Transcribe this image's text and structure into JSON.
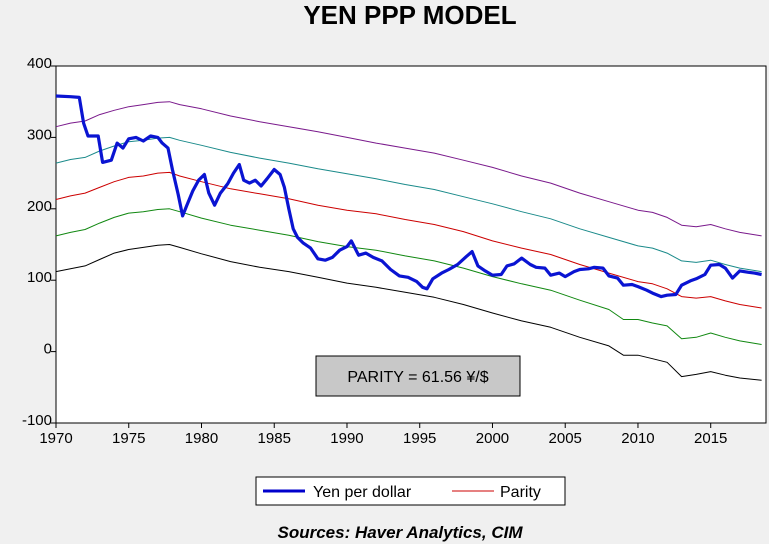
{
  "chart_data": {
    "type": "line",
    "title": "YEN PPP MODEL",
    "source": "Sources:  Haver Analytics, CIM",
    "annotation": "PARITY = 61.56 ¥/$",
    "xlim": [
      1970,
      2018.8
    ],
    "ylim": [
      -100,
      400
    ],
    "x_ticks": [
      1970,
      1975,
      1980,
      1985,
      1990,
      1995,
      2000,
      2005,
      2010,
      2015
    ],
    "y_ticks": [
      400,
      300,
      200,
      100,
      0,
      -100
    ],
    "grid": false,
    "legend_position": "bottom-center",
    "legend": [
      {
        "label": "Yen per dollar",
        "color": "#0000cc"
      },
      {
        "label": "Parity",
        "color": "#cc0000"
      }
    ],
    "series": [
      {
        "name": "Yen per dollar",
        "color": "#0a14d2",
        "points": [
          [
            1970.0,
            358
          ],
          [
            1971.0,
            357
          ],
          [
            1971.6,
            356
          ],
          [
            1971.9,
            320
          ],
          [
            1972.2,
            302
          ],
          [
            1972.9,
            302
          ],
          [
            1973.2,
            265
          ],
          [
            1973.8,
            268
          ],
          [
            1974.2,
            292
          ],
          [
            1974.6,
            285
          ],
          [
            1975.0,
            298
          ],
          [
            1975.5,
            300
          ],
          [
            1976.0,
            295
          ],
          [
            1976.5,
            302
          ],
          [
            1977.0,
            300
          ],
          [
            1977.3,
            292
          ],
          [
            1977.7,
            285
          ],
          [
            1978.0,
            255
          ],
          [
            1978.4,
            220
          ],
          [
            1978.7,
            190
          ],
          [
            1979.0,
            205
          ],
          [
            1979.4,
            225
          ],
          [
            1979.8,
            240
          ],
          [
            1980.2,
            248
          ],
          [
            1980.5,
            222
          ],
          [
            1980.9,
            205
          ],
          [
            1981.3,
            222
          ],
          [
            1981.8,
            235
          ],
          [
            1982.2,
            250
          ],
          [
            1982.6,
            262
          ],
          [
            1982.9,
            240
          ],
          [
            1983.3,
            236
          ],
          [
            1983.7,
            240
          ],
          [
            1984.1,
            232
          ],
          [
            1984.5,
            242
          ],
          [
            1985.0,
            255
          ],
          [
            1985.4,
            248
          ],
          [
            1985.7,
            230
          ],
          [
            1986.0,
            200
          ],
          [
            1986.3,
            172
          ],
          [
            1986.6,
            160
          ],
          [
            1987.0,
            152
          ],
          [
            1987.5,
            145
          ],
          [
            1988.0,
            130
          ],
          [
            1988.5,
            128
          ],
          [
            1989.0,
            132
          ],
          [
            1989.5,
            142
          ],
          [
            1990.0,
            147
          ],
          [
            1990.3,
            155
          ],
          [
            1990.8,
            135
          ],
          [
            1991.3,
            138
          ],
          [
            1991.8,
            132
          ],
          [
            1992.4,
            127
          ],
          [
            1993.0,
            115
          ],
          [
            1993.6,
            106
          ],
          [
            1994.2,
            104
          ],
          [
            1994.8,
            98
          ],
          [
            1995.2,
            90
          ],
          [
            1995.5,
            88
          ],
          [
            1995.9,
            102
          ],
          [
            1996.5,
            110
          ],
          [
            1997.0,
            115
          ],
          [
            1997.6,
            122
          ],
          [
            1998.2,
            133
          ],
          [
            1998.6,
            140
          ],
          [
            1999.0,
            120
          ],
          [
            1999.5,
            113
          ],
          [
            2000.0,
            107
          ],
          [
            2000.6,
            108
          ],
          [
            2001.0,
            120
          ],
          [
            2001.5,
            123
          ],
          [
            2002.0,
            131
          ],
          [
            2002.6,
            122
          ],
          [
            2003.0,
            118
          ],
          [
            2003.6,
            117
          ],
          [
            2004.0,
            107
          ],
          [
            2004.6,
            110
          ],
          [
            2005.0,
            105
          ],
          [
            2005.6,
            112
          ],
          [
            2006.0,
            115
          ],
          [
            2006.6,
            116
          ],
          [
            2007.0,
            118
          ],
          [
            2007.6,
            117
          ],
          [
            2008.0,
            106
          ],
          [
            2008.6,
            103
          ],
          [
            2009.0,
            93
          ],
          [
            2009.6,
            94
          ],
          [
            2010.0,
            91
          ],
          [
            2010.6,
            86
          ],
          [
            2011.0,
            82
          ],
          [
            2011.6,
            77
          ],
          [
            2012.0,
            79
          ],
          [
            2012.6,
            80
          ],
          [
            2013.0,
            93
          ],
          [
            2013.6,
            99
          ],
          [
            2014.0,
            102
          ],
          [
            2014.6,
            108
          ],
          [
            2015.0,
            121
          ],
          [
            2015.6,
            122
          ],
          [
            2016.0,
            117
          ],
          [
            2016.5,
            103
          ],
          [
            2017.0,
            113
          ],
          [
            2017.6,
            111
          ],
          [
            2018.0,
            110
          ],
          [
            2018.5,
            108
          ]
        ]
      },
      {
        "name": "Parity",
        "color": "#cc0000",
        "points": [
          [
            1970.0,
            213
          ],
          [
            1971.0,
            218
          ],
          [
            1972.0,
            222
          ],
          [
            1973.0,
            230
          ],
          [
            1974.0,
            238
          ],
          [
            1975.0,
            244
          ],
          [
            1976.0,
            246
          ],
          [
            1977.0,
            250
          ],
          [
            1977.8,
            251
          ],
          [
            1978.5,
            246
          ],
          [
            1980.0,
            238
          ],
          [
            1982.0,
            228
          ],
          [
            1984.0,
            221
          ],
          [
            1986.0,
            214
          ],
          [
            1988.0,
            205
          ],
          [
            1990.0,
            198
          ],
          [
            1992.0,
            193
          ],
          [
            1994.0,
            185
          ],
          [
            1996.0,
            178
          ],
          [
            1998.0,
            168
          ],
          [
            2000.0,
            155
          ],
          [
            2002.0,
            145
          ],
          [
            2004.0,
            136
          ],
          [
            2006.0,
            122
          ],
          [
            2008.0,
            110
          ],
          [
            2010.0,
            98
          ],
          [
            2011.0,
            95
          ],
          [
            2012.0,
            88
          ],
          [
            2013.0,
            77
          ],
          [
            2014.0,
            75
          ],
          [
            2015.0,
            77
          ],
          [
            2016.0,
            71
          ],
          [
            2017.0,
            66
          ],
          [
            2018.5,
            61
          ]
        ]
      },
      {
        "color": "#7a1a8c",
        "points": [
          [
            1970.0,
            315
          ],
          [
            1971.0,
            320
          ],
          [
            1972.0,
            323
          ],
          [
            1973.0,
            332
          ],
          [
            1974.0,
            338
          ],
          [
            1975.0,
            343
          ],
          [
            1976.0,
            346
          ],
          [
            1977.0,
            349
          ],
          [
            1977.8,
            350
          ],
          [
            1978.5,
            346
          ],
          [
            1980.0,
            340
          ],
          [
            1982.0,
            330
          ],
          [
            1984.0,
            322
          ],
          [
            1986.0,
            315
          ],
          [
            1988.0,
            308
          ],
          [
            1990.0,
            300
          ],
          [
            1992.0,
            292
          ],
          [
            1994.0,
            285
          ],
          [
            1996.0,
            278
          ],
          [
            1998.0,
            268
          ],
          [
            2000.0,
            258
          ],
          [
            2002.0,
            246
          ],
          [
            2004.0,
            236
          ],
          [
            2006.0,
            222
          ],
          [
            2008.0,
            210
          ],
          [
            2010.0,
            198
          ],
          [
            2011.0,
            195
          ],
          [
            2012.0,
            188
          ],
          [
            2013.0,
            177
          ],
          [
            2014.0,
            175
          ],
          [
            2015.0,
            178
          ],
          [
            2016.0,
            172
          ],
          [
            2017.0,
            167
          ],
          [
            2018.5,
            162
          ]
        ]
      },
      {
        "color": "#1a8a8a",
        "points": [
          [
            1970.0,
            264
          ],
          [
            1971.0,
            269
          ],
          [
            1972.0,
            272
          ],
          [
            1973.0,
            281
          ],
          [
            1974.0,
            288
          ],
          [
            1975.0,
            294
          ],
          [
            1976.0,
            296
          ],
          [
            1977.0,
            299
          ],
          [
            1977.8,
            300
          ],
          [
            1978.5,
            296
          ],
          [
            1980.0,
            289
          ],
          [
            1982.0,
            279
          ],
          [
            1984.0,
            271
          ],
          [
            1986.0,
            264
          ],
          [
            1988.0,
            256
          ],
          [
            1990.0,
            249
          ],
          [
            1992.0,
            242
          ],
          [
            1994.0,
            234
          ],
          [
            1996.0,
            227
          ],
          [
            1998.0,
            217
          ],
          [
            2000.0,
            207
          ],
          [
            2002.0,
            196
          ],
          [
            2004.0,
            186
          ],
          [
            2006.0,
            172
          ],
          [
            2008.0,
            160
          ],
          [
            2010.0,
            148
          ],
          [
            2011.0,
            145
          ],
          [
            2012.0,
            138
          ],
          [
            2013.0,
            127
          ],
          [
            2014.0,
            125
          ],
          [
            2015.0,
            128
          ],
          [
            2016.0,
            122
          ],
          [
            2017.0,
            117
          ],
          [
            2018.5,
            112
          ]
        ]
      },
      {
        "color": "#118811",
        "points": [
          [
            1970.0,
            162
          ],
          [
            1971.0,
            167
          ],
          [
            1972.0,
            171
          ],
          [
            1973.0,
            180
          ],
          [
            1974.0,
            188
          ],
          [
            1975.0,
            194
          ],
          [
            1976.0,
            196
          ],
          [
            1977.0,
            199
          ],
          [
            1977.8,
            200
          ],
          [
            1978.5,
            196
          ],
          [
            1980.0,
            187
          ],
          [
            1982.0,
            177
          ],
          [
            1984.0,
            170
          ],
          [
            1986.0,
            163
          ],
          [
            1988.0,
            154
          ],
          [
            1990.0,
            147
          ],
          [
            1992.0,
            142
          ],
          [
            1994.0,
            134
          ],
          [
            1996.0,
            127
          ],
          [
            1998.0,
            117
          ],
          [
            2000.0,
            105
          ],
          [
            2002.0,
            95
          ],
          [
            2004.0,
            86
          ],
          [
            2006.0,
            72
          ],
          [
            2008.0,
            59
          ],
          [
            2009.0,
            45
          ],
          [
            2010.0,
            45
          ],
          [
            2011.0,
            40
          ],
          [
            2012.0,
            36
          ],
          [
            2013.0,
            18
          ],
          [
            2014.0,
            20
          ],
          [
            2015.0,
            26
          ],
          [
            2016.0,
            20
          ],
          [
            2017.0,
            15
          ],
          [
            2018.5,
            10
          ]
        ]
      },
      {
        "color": "#000000",
        "points": [
          [
            1970.0,
            112
          ],
          [
            1971.0,
            116
          ],
          [
            1972.0,
            120
          ],
          [
            1973.0,
            129
          ],
          [
            1974.0,
            138
          ],
          [
            1975.0,
            143
          ],
          [
            1976.0,
            146
          ],
          [
            1977.0,
            149
          ],
          [
            1977.8,
            150
          ],
          [
            1978.5,
            146
          ],
          [
            1980.0,
            137
          ],
          [
            1982.0,
            126
          ],
          [
            1984.0,
            118
          ],
          [
            1986.0,
            112
          ],
          [
            1988.0,
            104
          ],
          [
            1990.0,
            96
          ],
          [
            1992.0,
            90
          ],
          [
            1994.0,
            83
          ],
          [
            1996.0,
            76
          ],
          [
            1998.0,
            66
          ],
          [
            2000.0,
            54
          ],
          [
            2002.0,
            43
          ],
          [
            2004.0,
            34
          ],
          [
            2006.0,
            20
          ],
          [
            2008.0,
            8
          ],
          [
            2009.0,
            -5
          ],
          [
            2010.0,
            -5
          ],
          [
            2011.0,
            -10
          ],
          [
            2012.0,
            -15
          ],
          [
            2013.0,
            -35
          ],
          [
            2014.0,
            -32
          ],
          [
            2015.0,
            -28
          ],
          [
            2016.0,
            -33
          ],
          [
            2017.0,
            -37
          ],
          [
            2018.5,
            -40
          ]
        ]
      }
    ]
  }
}
